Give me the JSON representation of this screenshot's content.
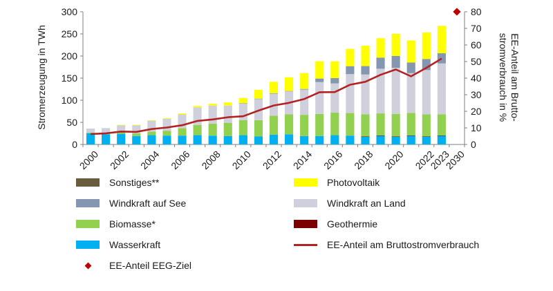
{
  "chart_data": {
    "type": "bar",
    "stacked": true,
    "categories": [
      "2000",
      "2001",
      "2002",
      "2003",
      "2004",
      "2005",
      "2006",
      "2007",
      "2008",
      "2009",
      "2010",
      "2011",
      "2012",
      "2013",
      "2014",
      "2015",
      "2016",
      "2017",
      "2018",
      "2019",
      "2020",
      "2021",
      "2022",
      "2023"
    ],
    "x_tick_labels": [
      "2000",
      "2002",
      "2004",
      "2006",
      "2008",
      "2010",
      "2012",
      "2014",
      "2016",
      "2018",
      "2020",
      "2022",
      "2023",
      "2030"
    ],
    "ylabel_left": "Stromerzeugung in TWh",
    "ylabel_right": [
      "EE-Anteil am Brutto-",
      "stromverbrauch in %"
    ],
    "ylim_left": [
      0,
      300
    ],
    "ylim_right": [
      0,
      80
    ],
    "yticks_left": [
      "0",
      "50",
      "100",
      "150",
      "200",
      "250",
      "300"
    ],
    "yticks_right": [
      "0",
      "10",
      "20",
      "30",
      "40",
      "50",
      "60",
      "70",
      "80"
    ],
    "series": [
      {
        "name": "Wasserkraft",
        "color": "#00b0f0",
        "axis": "left",
        "values": [
          25,
          23,
          24,
          19,
          21,
          20,
          20,
          21,
          20,
          19,
          21,
          18,
          22,
          23,
          19,
          19,
          21,
          20,
          18,
          20,
          18,
          20,
          18,
          20
        ]
      },
      {
        "name": "Geothermie",
        "color": "#7b0000",
        "axis": "left",
        "values": [
          0,
          0,
          0,
          0,
          0,
          0,
          0,
          0,
          0,
          0,
          0,
          0,
          0,
          0,
          0,
          0,
          0,
          0,
          0.2,
          0.2,
          0.2,
          0.2,
          0.2,
          0.2
        ]
      },
      {
        "name": "Biomasse*",
        "color": "#92d050",
        "axis": "left",
        "values": [
          2,
          3,
          4,
          6,
          8,
          11,
          17,
          23,
          27,
          30,
          34,
          37,
          43,
          45,
          48,
          50,
          51,
          51,
          50,
          50,
          51,
          51,
          50,
          48
        ]
      },
      {
        "name": "Windkraft an Land",
        "color": "#d0d0dc",
        "axis": "left",
        "values": [
          9,
          11,
          16,
          19,
          25,
          27,
          31,
          40,
          41,
          39,
          38,
          48,
          50,
          52,
          57,
          72,
          66,
          88,
          90,
          101,
          104,
          90,
          100,
          115
        ]
      },
      {
        "name": "Windkraft auf See",
        "color": "#8496b0",
        "axis": "left",
        "values": [
          0,
          0,
          0,
          0,
          0,
          0,
          0,
          0,
          0,
          0,
          0.2,
          0.6,
          0.7,
          0.9,
          1.5,
          8,
          12,
          18,
          19,
          25,
          27,
          24,
          25,
          23
        ]
      },
      {
        "name": "Photovoltaik",
        "color": "#ffff00",
        "axis": "left",
        "values": [
          0,
          0,
          0.2,
          0.3,
          0.6,
          1.3,
          2.2,
          3,
          4,
          7,
          12,
          20,
          26,
          31,
          36,
          39,
          38,
          39,
          46,
          44,
          50,
          50,
          60,
          62
        ]
      },
      {
        "name": "Sonstiges**",
        "color": "#6b5b3e",
        "axis": "left",
        "values": [
          0,
          0,
          0,
          0,
          0,
          0,
          0,
          0,
          0,
          0,
          0,
          0,
          0,
          0,
          0,
          0,
          0,
          0,
          0,
          0,
          0,
          0,
          0,
          0
        ]
      }
    ],
    "line_series": {
      "name": "EE-Anteil am Bruttostromverbrauch",
      "color": "#b22222",
      "axis": "right",
      "values": [
        6.3,
        6.7,
        7.8,
        7.6,
        9.3,
        10.2,
        11.6,
        14.2,
        15.1,
        16.4,
        17.0,
        20.4,
        23.5,
        25.1,
        27.4,
        31.5,
        31.6,
        36.0,
        37.8,
        42.0,
        45.2,
        41.1,
        46.2,
        51.8
      ]
    },
    "target_point": {
      "name": "EE-Anteil EEG-Ziel",
      "color": "#c00000",
      "x": "2030",
      "value": 80
    }
  },
  "legend": {
    "left": [
      {
        "label": "Sonstiges**",
        "color": "#6b5b3e",
        "kind": "box"
      },
      {
        "label": "Windkraft auf See",
        "color": "#8496b0",
        "kind": "box"
      },
      {
        "label": "Biomasse*",
        "color": "#92d050",
        "kind": "box"
      },
      {
        "label": "Wasserkraft",
        "color": "#00b0f0",
        "kind": "box"
      },
      {
        "label": "EE-Anteil EEG-Ziel",
        "color": "#c00000",
        "kind": "diamond"
      }
    ],
    "right": [
      {
        "label": "Photovoltaik",
        "color": "#ffff00",
        "kind": "box"
      },
      {
        "label": "Windkraft an Land",
        "color": "#d0d0dc",
        "kind": "box"
      },
      {
        "label": "Geothermie",
        "color": "#7b0000",
        "kind": "box"
      },
      {
        "label": "EE-Anteil am Bruttostromverbrauch",
        "color": "#b22222",
        "kind": "line"
      }
    ]
  }
}
